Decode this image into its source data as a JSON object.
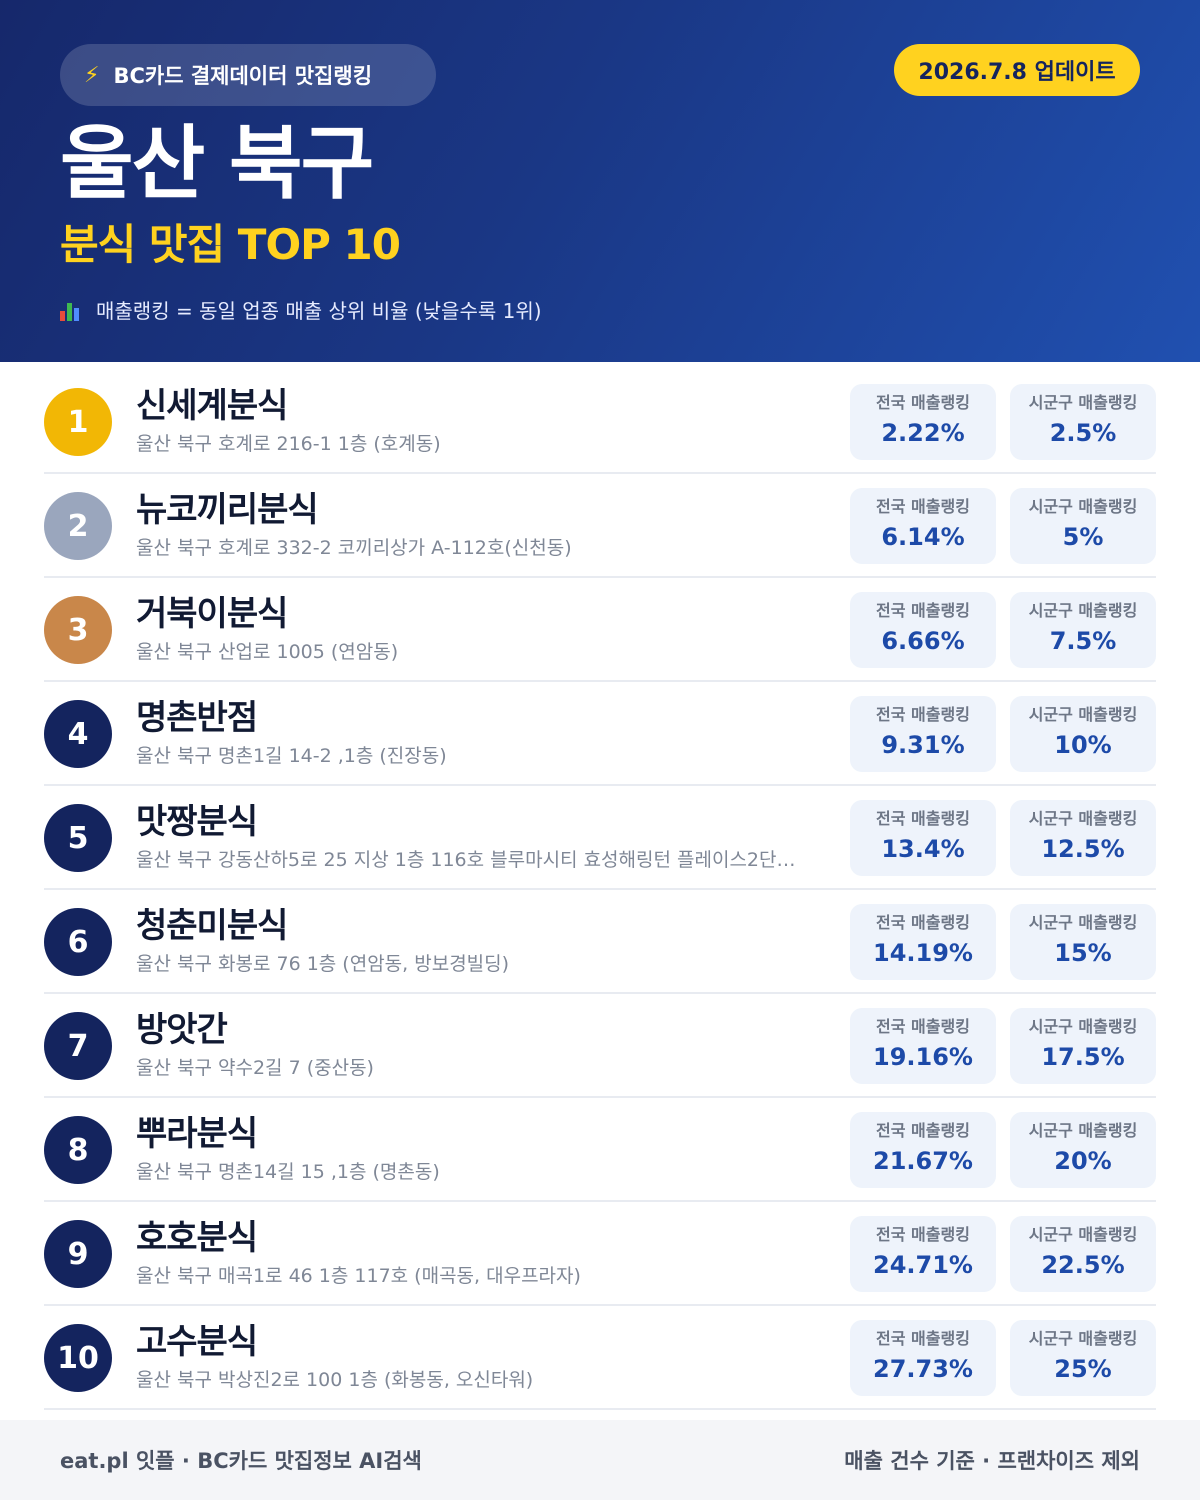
{
  "header": {
    "badge_icon": "lightning-icon",
    "badge_text": "BC카드 결제데이터 맛집랭킹",
    "update_text": "2026.7.8 업데이트",
    "region": "울산 북구",
    "subtitle": "분식 맛집 TOP 10",
    "legend_icon": "bar-chart-icon",
    "legend_text": "매출랭킹 = 동일 업종 매출 상위 비율 (낮을수록 1위)"
  },
  "stat_labels": {
    "national": "전국 매출랭킹",
    "local": "시군구 매출랭킹"
  },
  "restaurants": [
    {
      "rank": "1",
      "name": "신세계분식",
      "address": "울산 북구 호계로 216-1 1층 (호계동)",
      "national": "2.22%",
      "local": "2.5%"
    },
    {
      "rank": "2",
      "name": "뉴코끼리분식",
      "address": "울산 북구 호계로 332-2 코끼리상가 A-112호(신천동)",
      "national": "6.14%",
      "local": "5%"
    },
    {
      "rank": "3",
      "name": "거북이분식",
      "address": "울산 북구 산업로 1005 (연암동)",
      "national": "6.66%",
      "local": "7.5%"
    },
    {
      "rank": "4",
      "name": "명촌반점",
      "address": "울산 북구 명촌1길 14-2 ,1층 (진장동)",
      "national": "9.31%",
      "local": "10%"
    },
    {
      "rank": "5",
      "name": "맛짱분식",
      "address": "울산 북구 강동산하5로 25 지상 1층 116호 블루마시티 효성해링턴 플레이스2단…",
      "national": "13.4%",
      "local": "12.5%"
    },
    {
      "rank": "6",
      "name": "청춘미분식",
      "address": "울산 북구 화봉로 76 1층 (연암동, 방보경빌딩)",
      "national": "14.19%",
      "local": "15%"
    },
    {
      "rank": "7",
      "name": "방앗간",
      "address": "울산 북구 약수2길 7 (중산동)",
      "national": "19.16%",
      "local": "17.5%"
    },
    {
      "rank": "8",
      "name": "뿌라분식",
      "address": "울산 북구 명촌14길 15 ,1층 (명촌동)",
      "national": "21.67%",
      "local": "20%"
    },
    {
      "rank": "9",
      "name": "호호분식",
      "address": "울산 북구 매곡1로 46 1층 117호 (매곡동, 대우프라자)",
      "national": "24.71%",
      "local": "22.5%"
    },
    {
      "rank": "10",
      "name": "고수분식",
      "address": "울산 북구 박상진2로 100 1층 (화봉동, 오신타워)",
      "national": "27.73%",
      "local": "25%"
    }
  ],
  "footer": {
    "left": "eat.pl 잇플 · BC카드 맛집정보 AI검색",
    "right": "매출 건수 기준 · 프랜차이즈 제외"
  },
  "colors": {
    "header_dark": "#16286b",
    "header_light": "#2050b0",
    "accent_yellow": "#ffd21f",
    "rank_gold": "#f2b705",
    "rank_silver": "#9aa6bd",
    "rank_bronze": "#c9874a",
    "rank_default": "#14245e",
    "stat_value": "#1d4aa8"
  }
}
